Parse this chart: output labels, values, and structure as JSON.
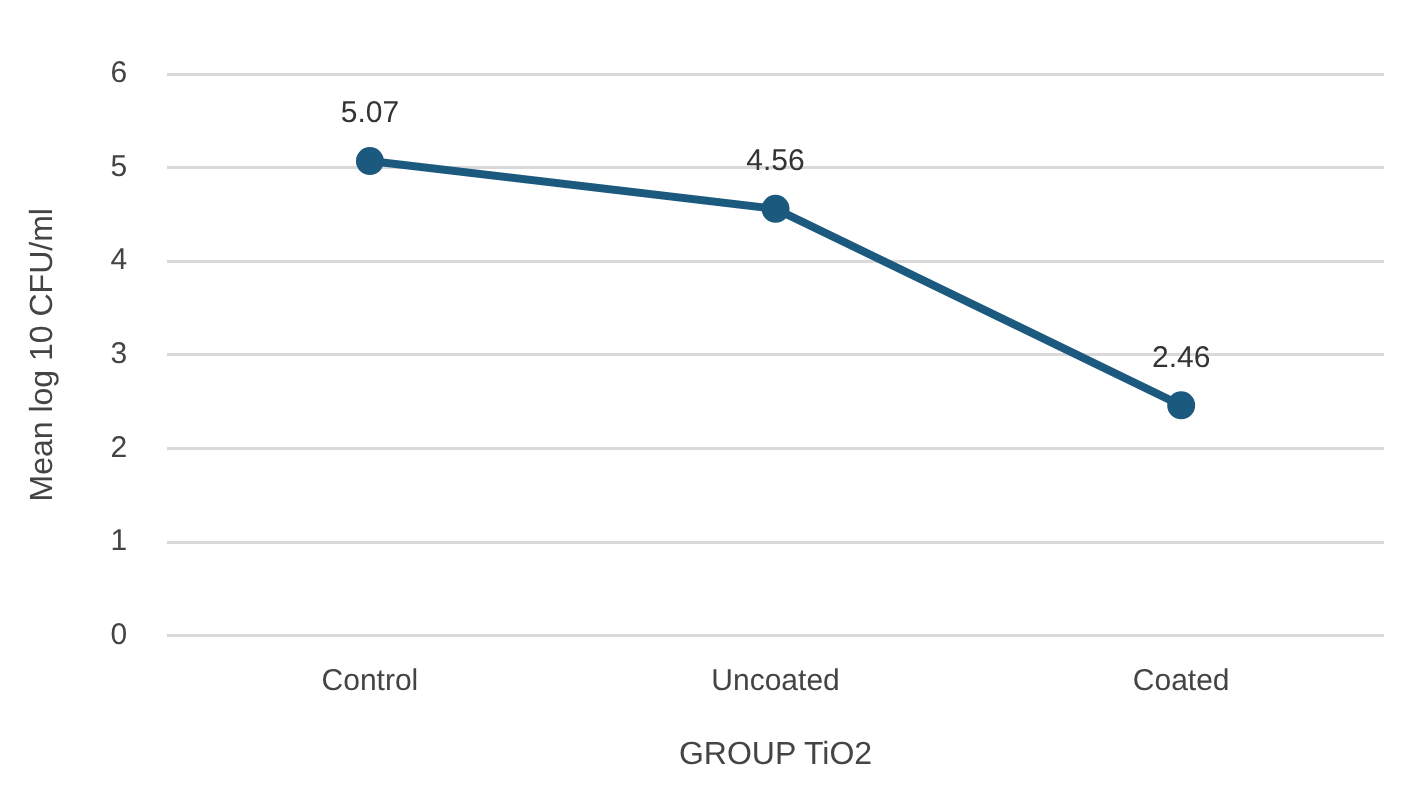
{
  "chart_data": {
    "type": "line",
    "xlabel": "GROUP TiO2",
    "ylabel": "Mean log 10 CFU/ml",
    "categories": [
      "Control",
      "Uncoated",
      "Coated"
    ],
    "series": [
      {
        "color": "#1b5a7e",
        "values": [
          5.07,
          4.56,
          2.46
        ]
      }
    ],
    "ylim": [
      0,
      6
    ],
    "yticks": [
      0,
      1,
      2,
      3,
      4,
      5,
      6
    ],
    "grid": "y",
    "legend": false,
    "marker": "circle",
    "line_style": "solid",
    "data_labels": true
  }
}
